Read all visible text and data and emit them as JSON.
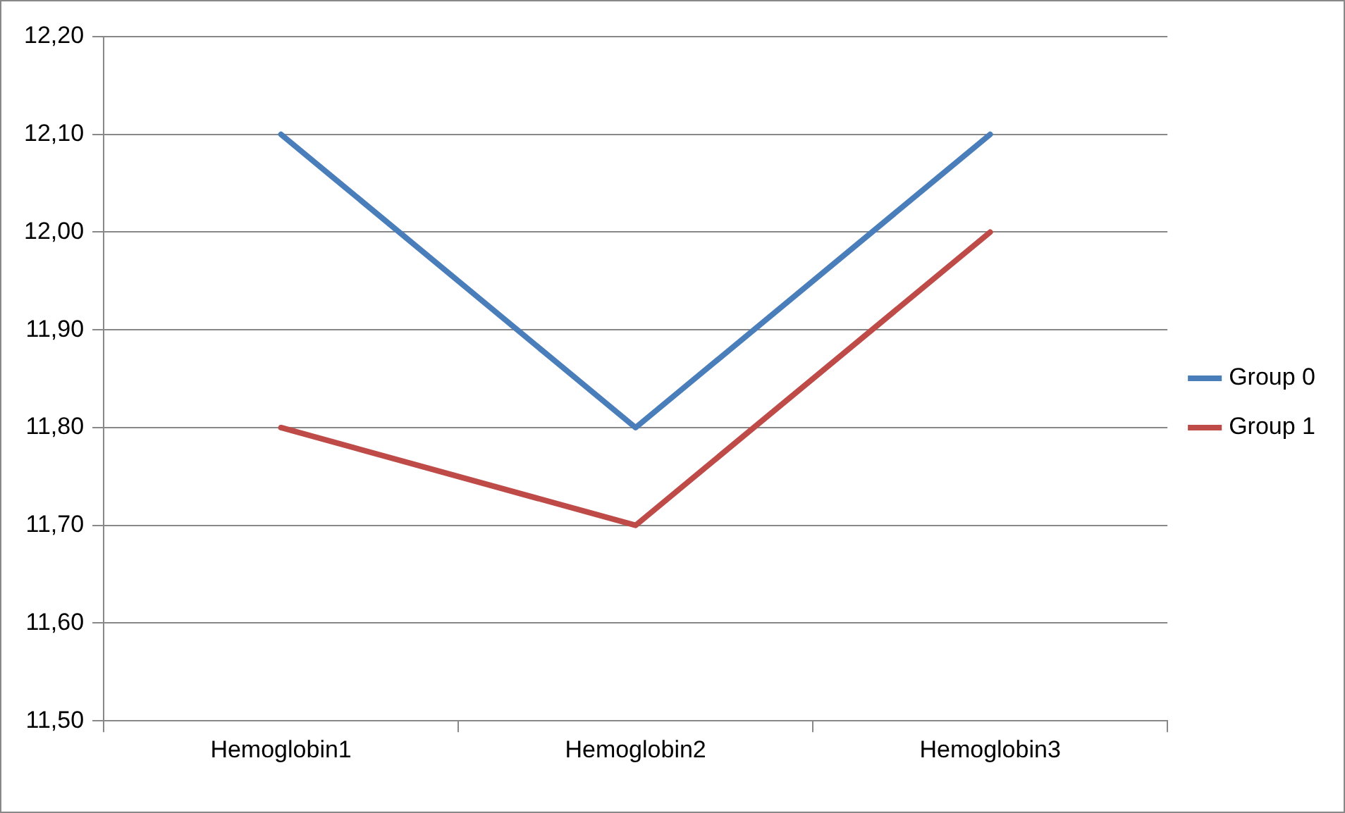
{
  "chart_data": {
    "type": "line",
    "categories": [
      "Hemoglobin1",
      "Hemoglobin2",
      "Hemoglobin3"
    ],
    "series": [
      {
        "name": "Group 0",
        "color": "#4a7ebb",
        "values": [
          12.1,
          11.8,
          12.1
        ]
      },
      {
        "name": "Group 1",
        "color": "#be4b48",
        "values": [
          11.8,
          11.7,
          12.0
        ]
      }
    ],
    "ylim": [
      11.5,
      12.2
    ],
    "yticks": [
      {
        "value": 11.5,
        "label": "11,50"
      },
      {
        "value": 11.6,
        "label": "11,60"
      },
      {
        "value": 11.7,
        "label": "11,70"
      },
      {
        "value": 11.8,
        "label": "11,80"
      },
      {
        "value": 11.9,
        "label": "11,90"
      },
      {
        "value": 12.0,
        "label": "12,00"
      },
      {
        "value": 12.1,
        "label": "12,10"
      },
      {
        "value": 12.2,
        "label": "12,20"
      }
    ],
    "grid": "y",
    "legend": "right",
    "marker": "none",
    "line_style": "solid"
  }
}
